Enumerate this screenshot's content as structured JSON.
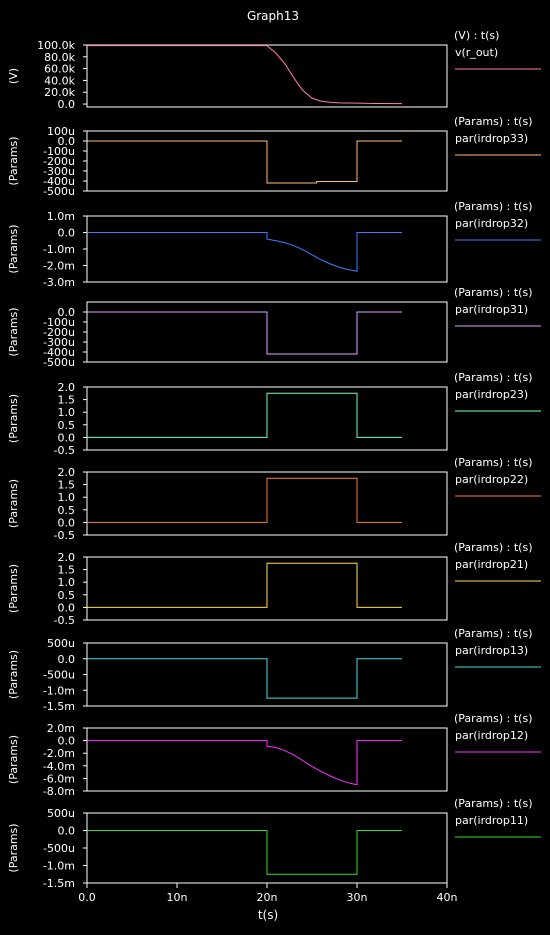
{
  "title": "Graph13",
  "chart_data": {
    "type": "line",
    "title": "Graph13",
    "xlabel": "t(s)",
    "xlim": [
      0,
      40
    ],
    "x_unit": "n",
    "x_ticks": [
      "0.0",
      "10n",
      "20n",
      "30n",
      "40n"
    ],
    "x_tick_values": [
      0,
      10,
      20,
      30,
      40
    ],
    "background": "#000000",
    "frame_color": "#ffffff",
    "panels": [
      {
        "ylabel": "(V)",
        "header": "(V) : t(s)",
        "series": [
          {
            "name": "v(r_out)",
            "color": "#ff7fa0",
            "x": [
              0,
              20,
              21,
              22,
              22.5,
              23,
              23.5,
              24,
              25,
              26,
              27,
              28,
              30,
              32,
              35
            ],
            "y": [
              99000,
              99000,
              86000,
              68000,
              56000,
              44000,
              33000,
              23000,
              10000,
              5000,
              3000,
              2000,
              1500,
              1000,
              800
            ]
          }
        ],
        "ylim": [
          -5000,
          100000
        ],
        "yticks": [
          "100.0k",
          "80.0k",
          "60.0k",
          "40.0k",
          "20.0k",
          "0.0"
        ],
        "ytick_values": [
          100000,
          80000,
          60000,
          40000,
          20000,
          0
        ]
      },
      {
        "ylabel": "(Params)",
        "header": "(Params) : t(s)",
        "series": [
          {
            "name": "par(irdrop33)",
            "color": "#ffc070",
            "x": [
              0,
              20,
              20,
              25.5,
              25.5,
              30,
              30,
              35
            ],
            "y": [
              0,
              0,
              -420,
              -420,
              -405,
              -405,
              0,
              0
            ]
          }
        ],
        "ylim": [
          -500,
          100
        ],
        "yticks": [
          "100u",
          "0.0",
          "-100u",
          "-200u",
          "-300u",
          "-400u",
          "-500u"
        ],
        "ytick_values": [
          100,
          0,
          -100,
          -200,
          -300,
          -400,
          -500
        ]
      },
      {
        "ylabel": "(Params)",
        "header": "(Params) : t(s)",
        "series": [
          {
            "name": "par(irdrop32)",
            "color": "#3a7fff",
            "x": [
              0,
              20,
              20,
              21,
              22,
              23,
              24,
              25,
              26,
              27,
              28,
              29,
              30,
              30,
              35
            ],
            "y": [
              0,
              0,
              -0.4,
              -0.5,
              -0.62,
              -0.8,
              -1.05,
              -1.35,
              -1.65,
              -1.9,
              -2.1,
              -2.25,
              -2.35,
              0,
              0
            ]
          }
        ],
        "ylim": [
          -3.0,
          1.0
        ],
        "yticks": [
          "1.0m",
          "0.0",
          "-1.0m",
          "-2.0m",
          "-3.0m"
        ],
        "ytick_values": [
          1,
          0,
          -1,
          -2,
          -3
        ]
      },
      {
        "ylabel": "(Params)",
        "header": "(Params) : t(s)",
        "series": [
          {
            "name": "par(irdrop31)",
            "color": "#d8a8ff",
            "x": [
              0,
              20,
              20,
              30,
              30,
              35
            ],
            "y": [
              0,
              0,
              -420,
              -420,
              0,
              0
            ]
          }
        ],
        "ylim": [
          -500,
          100
        ],
        "yticks": [
          "0.0",
          "-100u",
          "-200u",
          "-300u",
          "-400u",
          "-500u"
        ],
        "ytick_values": [
          0,
          -100,
          -200,
          -300,
          -400,
          -500
        ]
      },
      {
        "ylabel": "(Params)",
        "header": "(Params) : t(s)",
        "series": [
          {
            "name": "par(irdrop23)",
            "color": "#80ffb0",
            "x": [
              0,
              20,
              20,
              30,
              30,
              35
            ],
            "y": [
              0,
              0,
              1.75,
              1.75,
              0,
              0
            ]
          }
        ],
        "ylim": [
          -0.5,
          2.0
        ],
        "yticks": [
          "2.0",
          "1.5",
          "1.0",
          "0.5",
          "0.0",
          "-0.5"
        ],
        "ytick_values": [
          2.0,
          1.5,
          1.0,
          0.5,
          0.0,
          -0.5
        ]
      },
      {
        "ylabel": "(Params)",
        "header": "(Params) : t(s)",
        "series": [
          {
            "name": "par(irdrop22)",
            "color": "#ff7a3a",
            "x": [
              0,
              20,
              20,
              30,
              30,
              35
            ],
            "y": [
              0,
              0,
              1.75,
              1.75,
              0,
              0
            ]
          }
        ],
        "ylim": [
          -0.5,
          2.0
        ],
        "yticks": [
          "2.0",
          "1.5",
          "1.0",
          "0.5",
          "0.0",
          "-0.5"
        ],
        "ytick_values": [
          2.0,
          1.5,
          1.0,
          0.5,
          0.0,
          -0.5
        ]
      },
      {
        "ylabel": "(Params)",
        "header": "(Params) : t(s)",
        "series": [
          {
            "name": "par(irdrop21)",
            "color": "#ffe040",
            "x": [
              0,
              20,
              20,
              30,
              30,
              35
            ],
            "y": [
              0,
              0,
              1.75,
              1.75,
              0,
              0
            ]
          }
        ],
        "ylim": [
          -0.5,
          2.0
        ],
        "yticks": [
          "2.0",
          "1.5",
          "1.0",
          "0.5",
          "0.0",
          "-0.5"
        ],
        "ytick_values": [
          2.0,
          1.5,
          1.0,
          0.5,
          0.0,
          -0.5
        ]
      },
      {
        "ylabel": "(Params)",
        "header": "(Params) : t(s)",
        "series": [
          {
            "name": "par(irdrop13)",
            "color": "#40e0e0",
            "x": [
              0,
              20,
              20,
              30,
              30,
              35
            ],
            "y": [
              0,
              0,
              -1.25,
              -1.25,
              0,
              0
            ]
          }
        ],
        "ylim": [
          -1.5,
          0.5
        ],
        "yticks": [
          "500u",
          "0.0",
          "-500u",
          "-1.0m",
          "-1.5m"
        ],
        "ytick_values": [
          0.5,
          0,
          -0.5,
          -1.0,
          -1.5
        ]
      },
      {
        "ylabel": "(Params)",
        "header": "(Params) : t(s)",
        "series": [
          {
            "name": "par(irdrop12)",
            "color": "#ff30ff",
            "x": [
              0,
              20,
              20,
              21,
              22,
              23,
              24,
              25,
              26,
              27,
              28,
              29,
              30,
              30,
              35
            ],
            "y": [
              0,
              0,
              -0.9,
              -1.1,
              -1.6,
              -2.3,
              -3.2,
              -4.1,
              -4.9,
              -5.6,
              -6.2,
              -6.7,
              -7.0,
              0,
              0
            ]
          }
        ],
        "ylim": [
          -8.0,
          2.0
        ],
        "yticks": [
          "2.0m",
          "0.0",
          "-2.0m",
          "-4.0m",
          "-6.0m",
          "-8.0m"
        ],
        "ytick_values": [
          2,
          0,
          -2,
          -4,
          -6,
          -8
        ]
      },
      {
        "ylabel": "(Params)",
        "header": "(Params) : t(s)",
        "series": [
          {
            "name": "par(irdrop11)",
            "color": "#30e030",
            "x": [
              0,
              20,
              20,
              30,
              30,
              35
            ],
            "y": [
              0,
              0,
              -1.25,
              -1.25,
              0,
              0
            ]
          }
        ],
        "ylim": [
          -1.5,
          0.5
        ],
        "yticks": [
          "500u",
          "0.0",
          "-500u",
          "-1.0m",
          "-1.5m"
        ],
        "ytick_values": [
          0.5,
          0,
          -0.5,
          -1.0,
          -1.5
        ]
      }
    ]
  }
}
